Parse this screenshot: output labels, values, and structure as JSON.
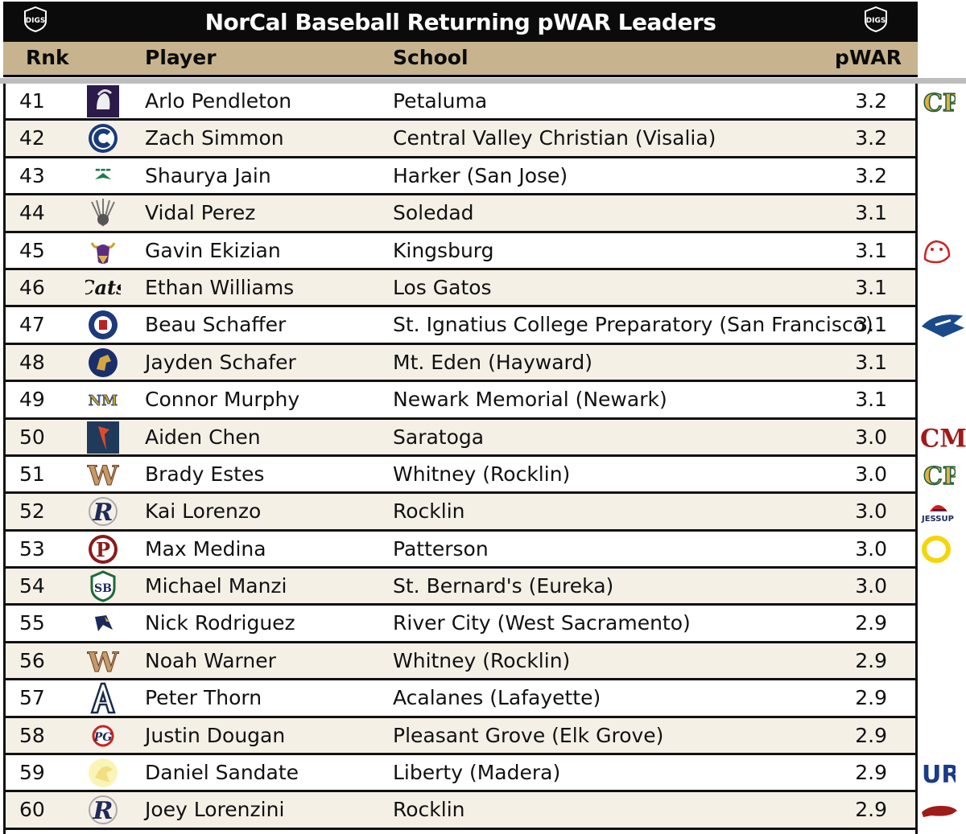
{
  "title": "NorCal Baseball Returning pWAR Leaders",
  "brand_badge": "DIGS",
  "headers": {
    "rnk": "Rnk",
    "player": "Player",
    "school": "School",
    "pwar": "pWAR"
  },
  "colors": {
    "header_bg": "#c7b48e",
    "title_bg": "#0b0b0b",
    "alt_row": "#f5f0e6"
  },
  "rows": [
    {
      "rnk": "41",
      "player": "Arlo Pendleton",
      "school": "Petaluma",
      "pwar": "3.2",
      "logo": "trojan-helmet-icon"
    },
    {
      "rnk": "42",
      "player": "Zach Simmon",
      "school": "Central Valley Christian (Visalia)",
      "pwar": "3.2",
      "logo": "letter-c-icon"
    },
    {
      "rnk": "43",
      "player": "Shaurya Jain",
      "school": "Harker (San Jose)",
      "pwar": "3.2",
      "logo": "harker-eagle-icon"
    },
    {
      "rnk": "44",
      "player": "Vidal Perez",
      "school": "Soledad",
      "pwar": "3.1",
      "logo": "headdress-icon"
    },
    {
      "rnk": "45",
      "player": "Gavin Ekizian",
      "school": "Kingsburg",
      "pwar": "3.1",
      "logo": "viking-head-icon"
    },
    {
      "rnk": "46",
      "player": "Ethan Williams",
      "school": "Los Gatos",
      "pwar": "3.1",
      "logo": "cats-script-icon"
    },
    {
      "rnk": "47",
      "player": "Beau Schaffer",
      "school": "St. Ignatius College Preparatory (San Francisco)",
      "pwar": "3.1",
      "logo": "crest-seal-icon"
    },
    {
      "rnk": "48",
      "player": "Jayden Schafer",
      "school": "Mt. Eden (Hayward)",
      "pwar": "3.1",
      "logo": "horse-head-icon"
    },
    {
      "rnk": "49",
      "player": "Connor Murphy",
      "school": "Newark Memorial (Newark)",
      "pwar": "3.1",
      "logo": "nm-monogram-icon"
    },
    {
      "rnk": "50",
      "player": "Aiden Chen",
      "school": "Saratoga",
      "pwar": "3.0",
      "logo": "falcon-icon"
    },
    {
      "rnk": "51",
      "player": "Brady Estes",
      "school": "Whitney (Rocklin)",
      "pwar": "3.0",
      "logo": "letter-w-icon"
    },
    {
      "rnk": "52",
      "player": "Kai Lorenzo",
      "school": "Rocklin",
      "pwar": "3.0",
      "logo": "letter-r-icon"
    },
    {
      "rnk": "53",
      "player": "Max Medina",
      "school": "Patterson",
      "pwar": "3.0",
      "logo": "letter-p-icon"
    },
    {
      "rnk": "54",
      "player": "Michael Manzi",
      "school": "St. Bernard's (Eureka)",
      "pwar": "3.0",
      "logo": "sb-shield-icon"
    },
    {
      "rnk": "55",
      "player": "Nick Rodriguez",
      "school": "River City (West Sacramento)",
      "pwar": "2.9",
      "logo": "raven-icon"
    },
    {
      "rnk": "56",
      "player": "Noah Warner",
      "school": "Whitney (Rocklin)",
      "pwar": "2.9",
      "logo": "letter-w-icon"
    },
    {
      "rnk": "57",
      "player": "Peter Thorn",
      "school": "Acalanes (Lafayette)",
      "pwar": "2.9",
      "logo": "letter-a-icon"
    },
    {
      "rnk": "58",
      "player": "Justin Dougan",
      "school": "Pleasant Grove (Elk Grove)",
      "pwar": "2.9",
      "logo": "pg-eagle-icon"
    },
    {
      "rnk": "59",
      "player": "Daniel Sandate",
      "school": "Liberty (Madera)",
      "pwar": "2.9",
      "logo": "hawk-icon"
    },
    {
      "rnk": "60",
      "player": "Joey Lorenzini",
      "school": "Rocklin",
      "pwar": "2.9",
      "logo": "letter-r-icon"
    }
  ],
  "side_logos": [
    {
      "row": 0,
      "logo": "cp-monogram-icon"
    },
    {
      "row": 4,
      "logo": "bulldog-icon"
    },
    {
      "row": 6,
      "logo": "mustang-icon"
    },
    {
      "row": 9,
      "logo": "cm-monogram-icon"
    },
    {
      "row": 10,
      "logo": "cp-monogram-icon"
    },
    {
      "row": 11,
      "logo": "jessup-logo-icon",
      "text": "JESSUP"
    },
    {
      "row": 12,
      "logo": "oregon-o-icon"
    },
    {
      "row": 18,
      "logo": "ur-monogram-icon"
    },
    {
      "row": 19,
      "logo": "razorback-icon"
    }
  ]
}
